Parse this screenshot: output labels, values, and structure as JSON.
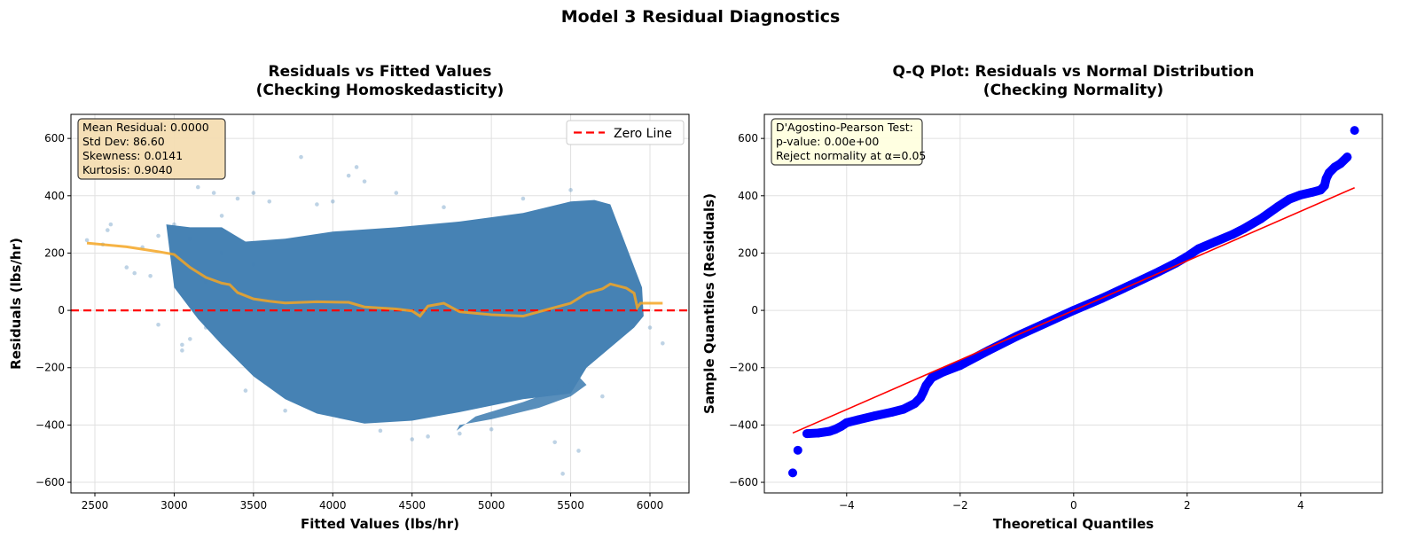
{
  "suptitle": "Model 3 Residual Diagnostics",
  "chart_data": [
    {
      "type": "scatter",
      "title": "Residuals vs Fitted Values\n(Checking Homoskedasticity)",
      "title_lines": [
        "Residuals vs Fitted Values",
        "(Checking Homoskedasticity)"
      ],
      "xlabel": "Fitted Values (lbs/hr)",
      "ylabel": "Residuals (lbs/hr)",
      "xlim": [
        2349,
        6246
      ],
      "ylim": [
        -637,
        684
      ],
      "xticks": [
        2500,
        3000,
        3500,
        4000,
        4500,
        5000,
        5500,
        6000
      ],
      "yticks": [
        -600,
        -400,
        -200,
        0,
        200,
        400,
        600
      ],
      "grid": true,
      "colors": {
        "points": "#4682b4",
        "smooth": "#f5a623",
        "zero_line": "#ff0000"
      },
      "legend": {
        "placement": "top-right",
        "entries": [
          "Zero Line"
        ]
      },
      "stats_box": [
        "Mean Residual: 0.0000",
        "Std Dev: 86.60",
        "Skewness: 0.0141",
        "Kurtosis: 0.9040"
      ],
      "dense_region": [
        [
          2950,
          300
        ],
        [
          3100,
          290
        ],
        [
          3300,
          290
        ],
        [
          3450,
          240
        ],
        [
          3700,
          250
        ],
        [
          4000,
          275
        ],
        [
          4400,
          290
        ],
        [
          4800,
          310
        ],
        [
          5200,
          340
        ],
        [
          5500,
          380
        ],
        [
          5650,
          385
        ],
        [
          5750,
          370
        ],
        [
          5950,
          80
        ],
        [
          5960,
          -20
        ],
        [
          5900,
          -60
        ],
        [
          5750,
          -130
        ],
        [
          5600,
          -200
        ],
        [
          5500,
          -290
        ],
        [
          5200,
          -310
        ],
        [
          4800,
          -355
        ],
        [
          4500,
          -385
        ],
        [
          4200,
          -395
        ],
        [
          3900,
          -360
        ],
        [
          3700,
          -310
        ],
        [
          3500,
          -230
        ],
        [
          3300,
          -120
        ],
        [
          3150,
          -30
        ],
        [
          3000,
          80
        ]
      ],
      "lower_branch": [
        [
          4800,
          -400
        ],
        [
          5000,
          -380
        ],
        [
          5300,
          -340
        ],
        [
          5500,
          -300
        ],
        [
          5600,
          -260
        ],
        [
          5550,
          -230
        ],
        [
          5450,
          -270
        ],
        [
          5200,
          -320
        ],
        [
          4900,
          -370
        ],
        [
          4780,
          -420
        ]
      ],
      "points": [
        [
          2450,
          245
        ],
        [
          2550,
          230
        ],
        [
          2580,
          280
        ],
        [
          2600,
          300
        ],
        [
          2700,
          150
        ],
        [
          2750,
          130
        ],
        [
          2800,
          220
        ],
        [
          2850,
          120
        ],
        [
          2900,
          260
        ],
        [
          3000,
          300
        ],
        [
          3050,
          -120
        ],
        [
          3050,
          -140
        ],
        [
          3100,
          250
        ],
        [
          3150,
          430
        ],
        [
          3200,
          -60
        ],
        [
          3250,
          410
        ],
        [
          3300,
          330
        ],
        [
          3400,
          390
        ],
        [
          3450,
          -280
        ],
        [
          3500,
          410
        ],
        [
          3600,
          380
        ],
        [
          3700,
          -350
        ],
        [
          3800,
          535
        ],
        [
          3900,
          370
        ],
        [
          4000,
          380
        ],
        [
          4100,
          470
        ],
        [
          4150,
          500
        ],
        [
          4200,
          450
        ],
        [
          4300,
          -420
        ],
        [
          4400,
          410
        ],
        [
          4500,
          -450
        ],
        [
          4600,
          -440
        ],
        [
          4700,
          360
        ],
        [
          4800,
          -430
        ],
        [
          5000,
          -415
        ],
        [
          5200,
          390
        ],
        [
          5400,
          -460
        ],
        [
          5450,
          -570
        ],
        [
          5500,
          420
        ],
        [
          5550,
          -490
        ],
        [
          5700,
          -300
        ],
        [
          5900,
          -40
        ],
        [
          6080,
          -115
        ],
        [
          6000,
          -60
        ],
        [
          3300,
          200
        ],
        [
          3500,
          160
        ],
        [
          3200,
          100
        ],
        [
          2900,
          -50
        ],
        [
          3100,
          -100
        ],
        [
          3600,
          -250
        ]
      ],
      "smooth_line": [
        [
          2450,
          235
        ],
        [
          2700,
          222
        ],
        [
          2900,
          205
        ],
        [
          3000,
          195
        ],
        [
          3100,
          150
        ],
        [
          3200,
          115
        ],
        [
          3300,
          95
        ],
        [
          3350,
          90
        ],
        [
          3400,
          62
        ],
        [
          3500,
          40
        ],
        [
          3600,
          32
        ],
        [
          3700,
          26
        ],
        [
          3900,
          30
        ],
        [
          4100,
          28
        ],
        [
          4200,
          12
        ],
        [
          4400,
          5
        ],
        [
          4500,
          -2
        ],
        [
          4550,
          -20
        ],
        [
          4600,
          15
        ],
        [
          4700,
          25
        ],
        [
          4800,
          -5
        ],
        [
          5000,
          -15
        ],
        [
          5200,
          -20
        ],
        [
          5300,
          -5
        ],
        [
          5400,
          10
        ],
        [
          5500,
          25
        ],
        [
          5600,
          60
        ],
        [
          5700,
          75
        ],
        [
          5750,
          92
        ],
        [
          5850,
          78
        ],
        [
          5900,
          60
        ],
        [
          5920,
          10
        ],
        [
          5940,
          25
        ],
        [
          6080,
          25
        ]
      ]
    },
    {
      "type": "scatter",
      "title": "Q-Q Plot: Residuals vs Normal Distribution\n(Checking Normality)",
      "title_lines": [
        "Q-Q Plot: Residuals vs Normal Distribution",
        "(Checking Normality)"
      ],
      "xlabel": "Theoretical Quantiles",
      "ylabel": "Sample Quantiles (Residuals)",
      "xlim": [
        -5.45,
        5.44
      ],
      "ylim": [
        -637,
        684
      ],
      "xticks": [
        -4,
        -2,
        0,
        2,
        4
      ],
      "xtick_labels": [
        "−4",
        "−2",
        "0",
        "2",
        "4"
      ],
      "yticks": [
        -600,
        -400,
        -200,
        0,
        200,
        400,
        600
      ],
      "grid": true,
      "colors": {
        "points": "#0000ff",
        "line": "#ff0000"
      },
      "stats_box": [
        "D'Agostino-Pearson Test:",
        "p-value: 0.00e+00",
        "Reject normality at α=0.05"
      ],
      "reference_line": [
        [
          -4.95,
          -428
        ],
        [
          4.95,
          428
        ]
      ],
      "points": [
        [
          -4.95,
          -567
        ],
        [
          -4.86,
          -488
        ],
        [
          -4.7,
          -430
        ],
        [
          -4.5,
          -428
        ],
        [
          -4.3,
          -422
        ],
        [
          -4.2,
          -415
        ],
        [
          -4.1,
          -405
        ],
        [
          -4.0,
          -392
        ],
        [
          -3.8,
          -382
        ],
        [
          -3.5,
          -368
        ],
        [
          -3.2,
          -355
        ],
        [
          -3.0,
          -345
        ],
        [
          -2.8,
          -325
        ],
        [
          -2.7,
          -305
        ],
        [
          -2.65,
          -285
        ],
        [
          -2.6,
          -262
        ],
        [
          -2.5,
          -235
        ],
        [
          -2.3,
          -215
        ],
        [
          -2.0,
          -192
        ],
        [
          -1.5,
          -140
        ],
        [
          -1.0,
          -90
        ],
        [
          -0.5,
          -45
        ],
        [
          0,
          0
        ],
        [
          0.5,
          42
        ],
        [
          1.0,
          88
        ],
        [
          1.5,
          135
        ],
        [
          1.8,
          165
        ],
        [
          2.0,
          188
        ],
        [
          2.2,
          215
        ],
        [
          2.5,
          240
        ],
        [
          2.8,
          265
        ],
        [
          3.0,
          285
        ],
        [
          3.3,
          320
        ],
        [
          3.6,
          362
        ],
        [
          3.8,
          388
        ],
        [
          4.0,
          403
        ],
        [
          4.2,
          412
        ],
        [
          4.35,
          420
        ],
        [
          4.42,
          435
        ],
        [
          4.45,
          460
        ],
        [
          4.5,
          480
        ],
        [
          4.6,
          500
        ],
        [
          4.7,
          512
        ],
        [
          4.82,
          535
        ],
        [
          4.95,
          628
        ]
      ]
    }
  ]
}
